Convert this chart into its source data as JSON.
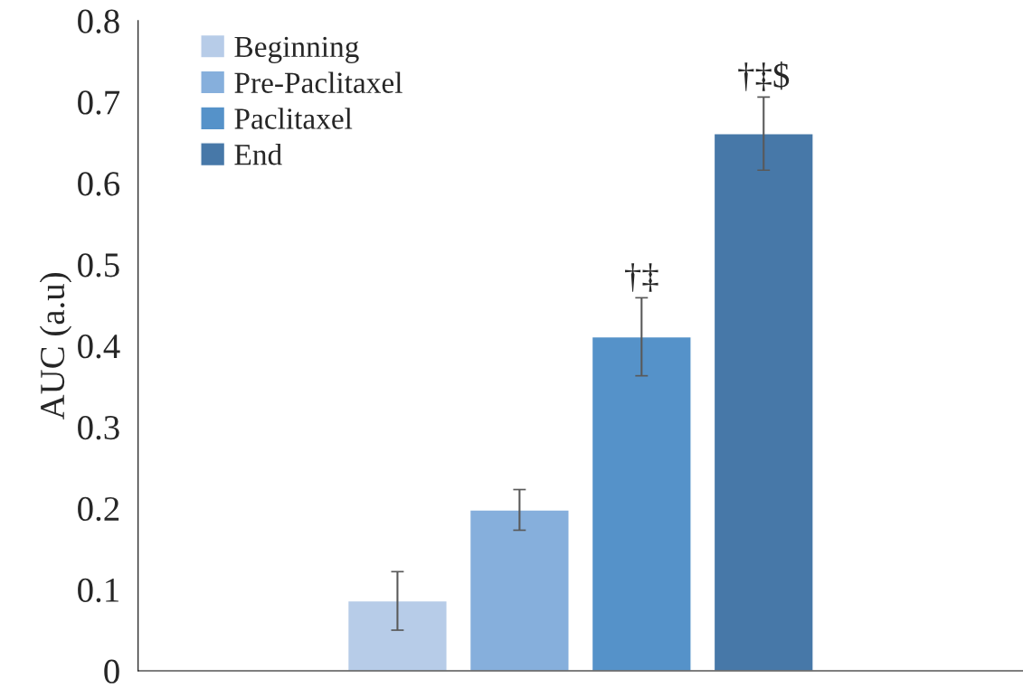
{
  "chart_data": {
    "type": "bar",
    "ylabel": "AUC (a.u)",
    "categories": [
      null
    ],
    "series": [
      {
        "name": "Beginning",
        "color": "#b7cce8",
        "values": [
          0.086
        ],
        "errors": [
          0.036
        ]
      },
      {
        "name": "Pre-Paclitaxel",
        "color": "#86afdc",
        "values": [
          0.198
        ],
        "errors": [
          0.025
        ]
      },
      {
        "name": "Paclitaxel",
        "color": "#5592c9",
        "values": [
          0.411
        ],
        "errors": [
          0.048
        ]
      },
      {
        "name": "End",
        "color": "#4778a8",
        "values": [
          0.661
        ],
        "errors": [
          0.045
        ]
      }
    ],
    "annotations": [
      "†‡",
      "†‡$"
    ],
    "ylim": [
      0,
      0.8
    ],
    "yticks": [
      0,
      0.1,
      0.2,
      0.3,
      0.4,
      0.5,
      0.6,
      0.7,
      0.8
    ],
    "tick_labels": "y",
    "grid": false,
    "legend": "top left"
  }
}
